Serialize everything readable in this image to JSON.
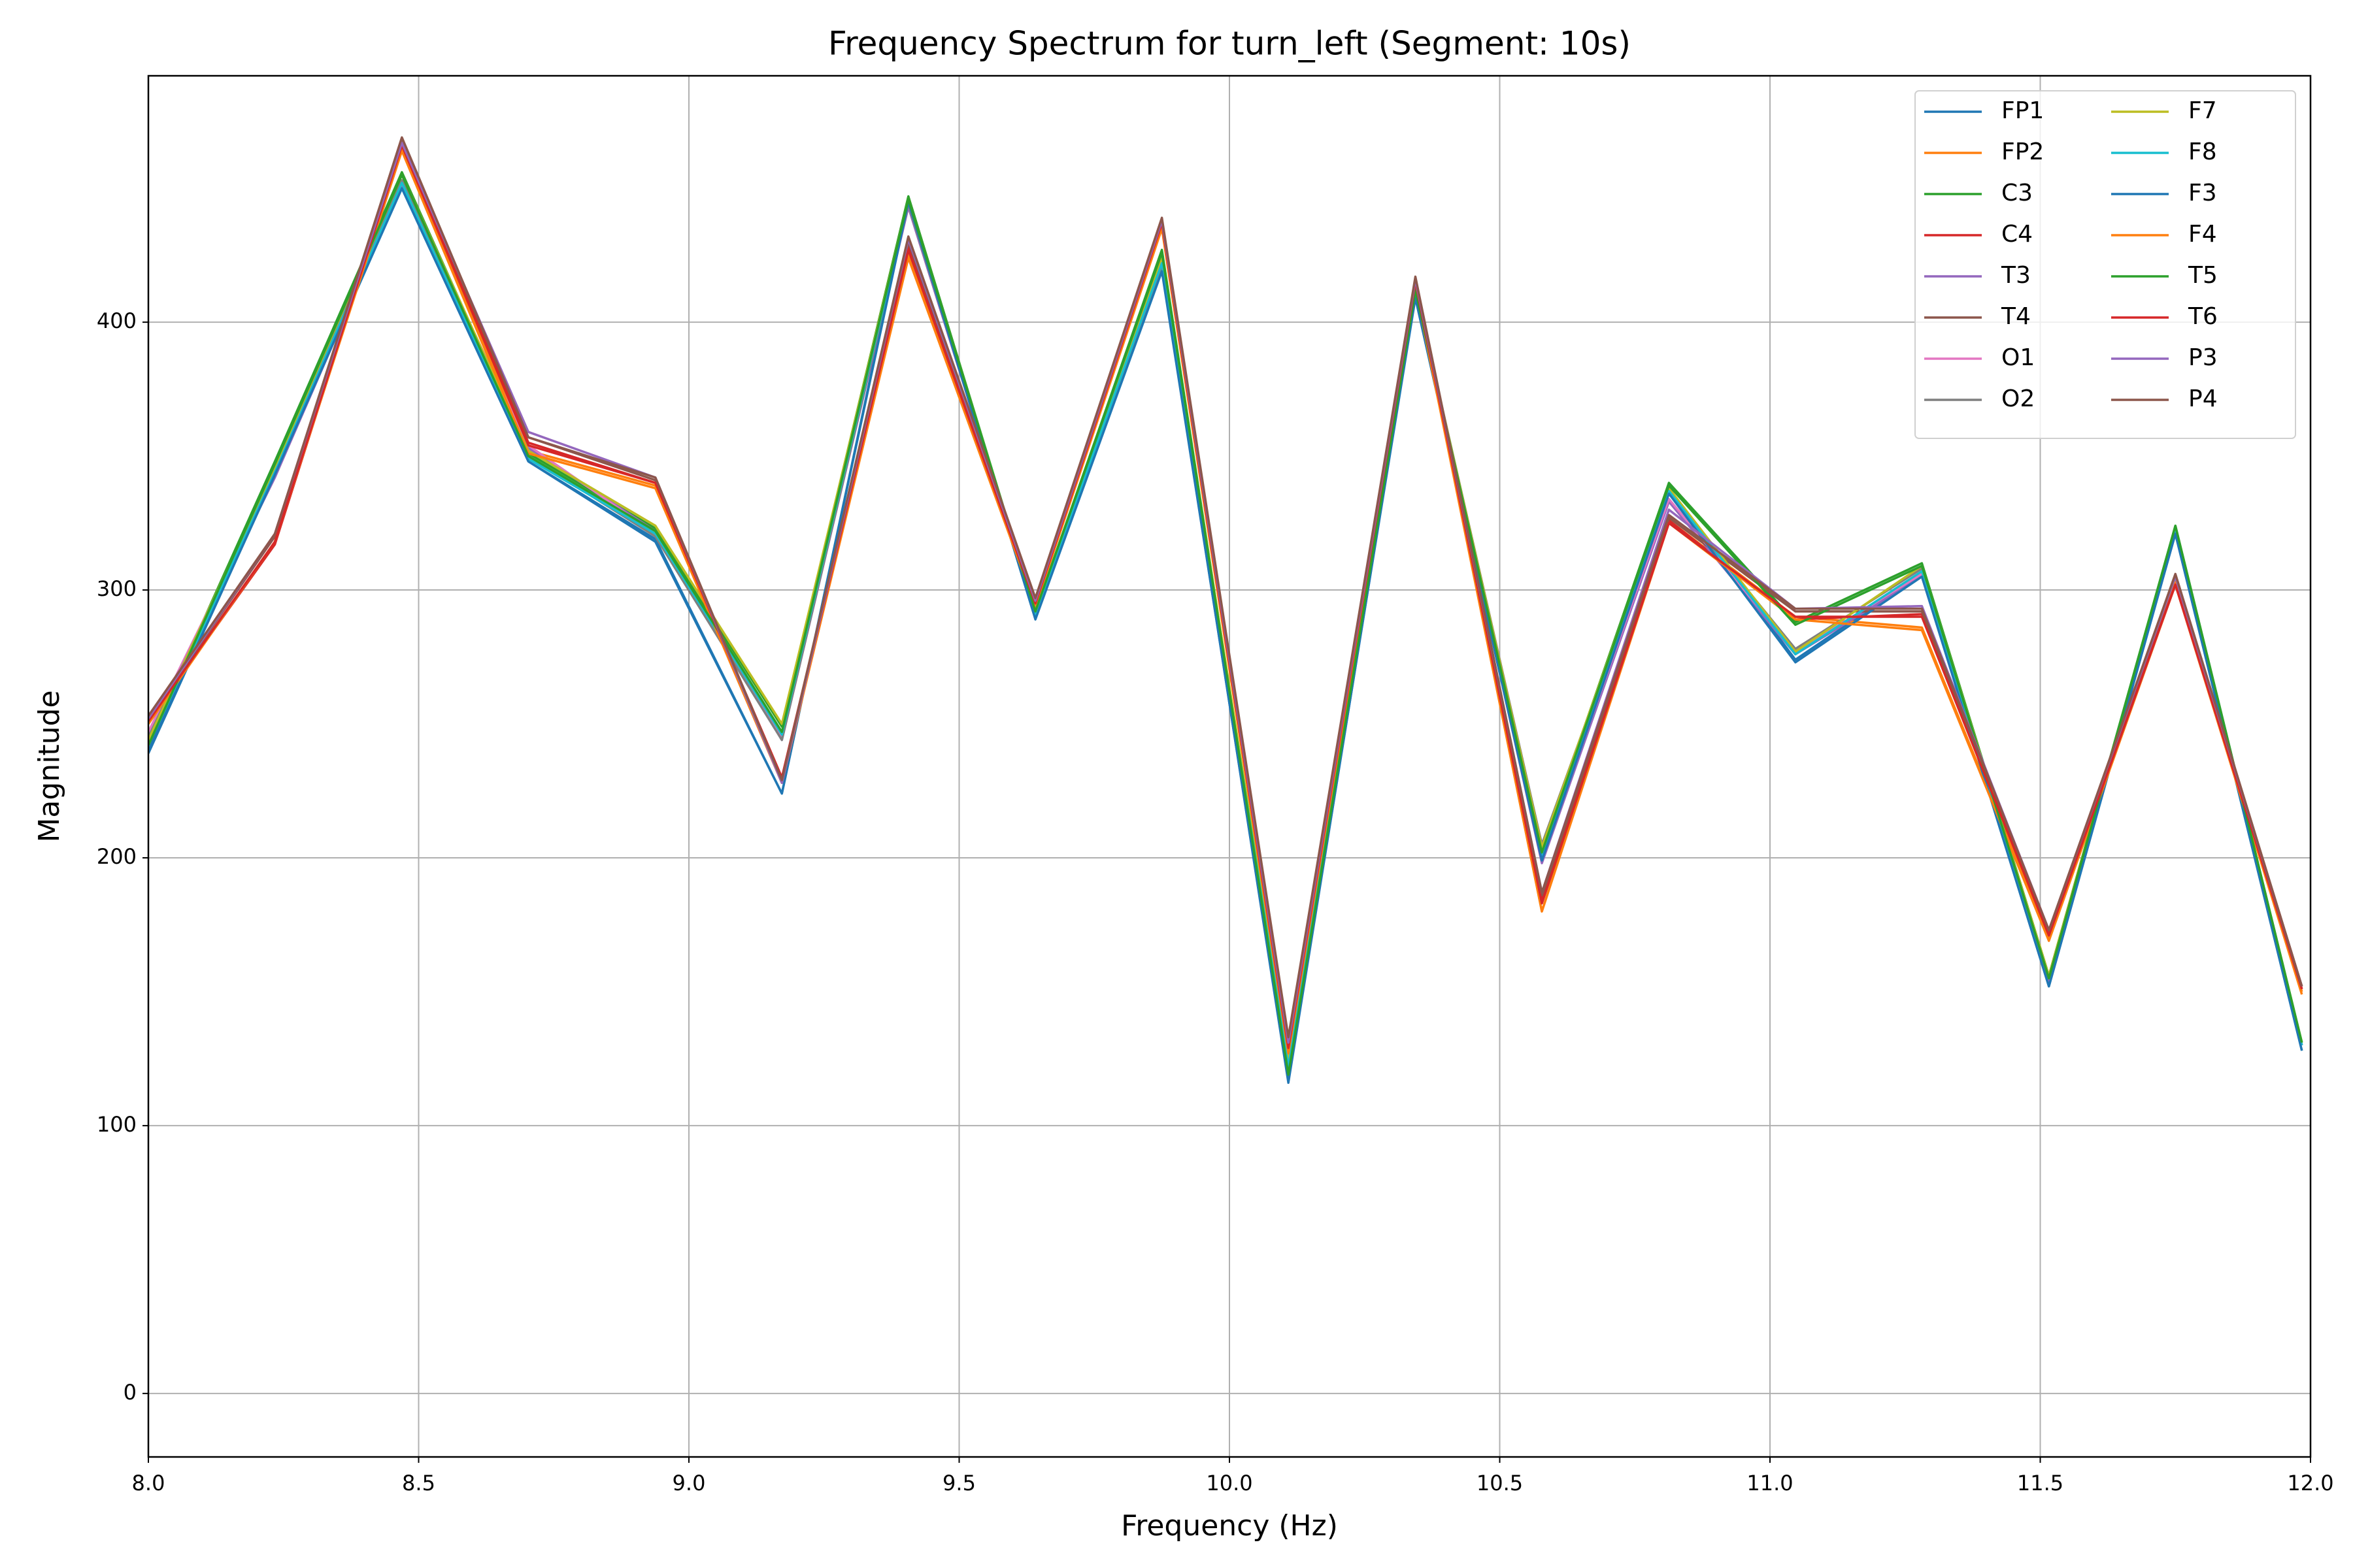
{
  "chart_data": {
    "type": "line",
    "title": "Frequency Spectrum for turn_left (Segment: 10s)",
    "x_label": "Frequency (Hz)",
    "y_label": "Magnitude",
    "x": [
      8.0,
      8.234,
      8.469,
      8.703,
      8.938,
      9.172,
      9.406,
      9.641,
      9.875,
      10.109,
      10.344,
      10.578,
      10.813,
      11.047,
      11.281,
      11.516,
      11.75,
      11.984
    ],
    "xlim": [
      8,
      12
    ],
    "ylim": [
      -23.7,
      492
    ],
    "xticks": [
      {
        "value": 8,
        "label": "8.0"
      },
      8.5,
      {
        "value": 9,
        "label": "9.0"
      },
      9.5,
      {
        "value": 10,
        "label": "10.0"
      },
      10.5,
      {
        "value": 11,
        "label": "11.0"
      },
      11.5,
      {
        "value": 12,
        "label": "12.0"
      }
    ],
    "yticks": [
      0,
      100,
      200,
      300,
      400
    ],
    "grid": true,
    "legend": "upper right",
    "legend_columns": 2,
    "series": [
      {
        "name": "FP1",
        "color": "#1f77b4",
        "values": [
          240,
          345,
          450,
          348,
          319,
          224,
          446,
          290,
          420,
          116,
          410,
          199,
          337,
          274,
          306,
          152,
          322,
          128
        ]
      },
      {
        "name": "FP2",
        "color": "#ff7f0e",
        "values": [
          250,
          318,
          465,
          352,
          339,
          229,
          426,
          294,
          436,
          128,
          414,
          180,
          326,
          290,
          286,
          170,
          303,
          150
        ]
      },
      {
        "name": "C3",
        "color": "#2ca02c",
        "values": [
          243,
          348,
          456,
          351,
          323,
          249,
          447,
          292,
          427,
          120,
          412,
          203,
          340,
          288,
          310,
          156,
          324,
          131
        ]
      },
      {
        "name": "C4",
        "color": "#d62728",
        "values": [
          251,
          317,
          466,
          355,
          340,
          230,
          428,
          295,
          437,
          130,
          415,
          184,
          326,
          289,
          291,
          172,
          302,
          151
        ]
      },
      {
        "name": "T3",
        "color": "#9467bd",
        "values": [
          246,
          342,
          451,
          353,
          322,
          244,
          443,
          291,
          421,
          122,
          411,
          198,
          333,
          276,
          305,
          154,
          321,
          130
        ]
      },
      {
        "name": "T4",
        "color": "#8c564b",
        "values": [
          252,
          320,
          468,
          357,
          341,
          228,
          430,
          296,
          438,
          132,
          416,
          186,
          327,
          292,
          292,
          172,
          305,
          152
        ]
      },
      {
        "name": "O1",
        "color": "#e377c2",
        "values": [
          247,
          343,
          452,
          354,
          321,
          245,
          444,
          291,
          422,
          123,
          411,
          200,
          334,
          277,
          306,
          155,
          322,
          130
        ]
      },
      {
        "name": "O2",
        "color": "#7f7f7f",
        "values": [
          245,
          344,
          453,
          350,
          320,
          244,
          444,
          291,
          421,
          121,
          412,
          205,
          336,
          278,
          308,
          155,
          323,
          130
        ]
      },
      {
        "name": "F7",
        "color": "#bcbd22",
        "values": [
          244,
          346,
          455,
          352,
          324,
          250,
          446,
          292,
          424,
          124,
          412,
          204,
          338,
          277,
          309,
          156,
          323,
          131
        ]
      },
      {
        "name": "F8",
        "color": "#17becf",
        "values": [
          242,
          344,
          452,
          349,
          321,
          246,
          445,
          291,
          422,
          122,
          411,
          201,
          337,
          276,
          307,
          155,
          322,
          130
        ]
      },
      {
        "name": "F3",
        "color": "#1f77b4",
        "values": [
          239,
          343,
          450,
          348,
          318,
          224,
          445,
          289,
          419,
          117,
          409,
          199,
          336,
          273,
          305,
          152,
          321,
          128
        ]
      },
      {
        "name": "F4",
        "color": "#ff7f0e",
        "values": [
          250,
          318,
          464,
          351,
          338,
          228,
          424,
          294,
          435,
          127,
          413,
          180,
          325,
          289,
          285,
          169,
          302,
          149
        ]
      },
      {
        "name": "T5",
        "color": "#2ca02c",
        "values": [
          242,
          347,
          455,
          350,
          322,
          247,
          446,
          292,
          426,
          119,
          412,
          202,
          339,
          287,
          309,
          155,
          324,
          131
        ]
      },
      {
        "name": "T6",
        "color": "#d62728",
        "values": [
          251,
          318,
          466,
          354,
          340,
          229,
          427,
          295,
          437,
          129,
          415,
          183,
          325,
          290,
          290,
          171,
          302,
          151
        ]
      },
      {
        "name": "P3",
        "color": "#9467bd",
        "values": [
          252,
          321,
          467,
          359,
          342,
          228,
          431,
          296,
          438,
          131,
          416,
          187,
          330,
          293,
          294,
          173,
          305,
          152
        ]
      },
      {
        "name": "P4",
        "color": "#8c564b",
        "values": [
          253,
          321,
          469,
          357,
          342,
          229,
          432,
          297,
          439,
          133,
          417,
          187,
          328,
          293,
          293,
          173,
          306,
          152
        ]
      }
    ]
  }
}
